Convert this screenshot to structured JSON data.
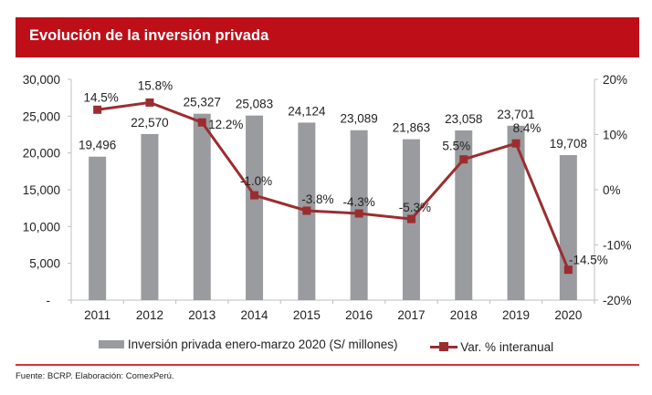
{
  "title": "Evolución de la inversión privada",
  "chart_data": {
    "type": "bar+line",
    "title": "Evolución de la inversión privada",
    "categories": [
      "2011",
      "2012",
      "2013",
      "2014",
      "2015",
      "2016",
      "2017",
      "2018",
      "2019",
      "2020"
    ],
    "series": [
      {
        "name": "Inversión privada enero-marzo 2020 (S/ millones)",
        "type": "bar",
        "axis": "left",
        "values": [
          19496,
          22570,
          25327,
          25083,
          24124,
          23089,
          21863,
          23058,
          23701,
          19708
        ],
        "labels": [
          "19,496",
          "22,570",
          "25,327",
          "25,083",
          "24,124",
          "23,089",
          "21,863",
          "23,058",
          "23,701",
          "19,708"
        ]
      },
      {
        "name": "Var. % interanual",
        "type": "line",
        "axis": "right",
        "values": [
          14.5,
          15.8,
          12.2,
          -1.0,
          -3.8,
          -4.3,
          -5.3,
          5.5,
          8.4,
          -14.5
        ],
        "labels": [
          "14.5%",
          "15.8%",
          "12.2%",
          "-1.0%",
          "-3.8%",
          "-4.3%",
          "-5.3%",
          "5.5%",
          "8.4%",
          "-14.5%"
        ]
      }
    ],
    "y_left": {
      "range": [
        0,
        30000
      ],
      "ticks": [
        "-",
        "5,000",
        "10,000",
        "15,000",
        "20,000",
        "25,000",
        "30,000"
      ]
    },
    "y_right": {
      "range": [
        -20,
        20
      ],
      "ticks": [
        "-20%",
        "-10%",
        "0%",
        "10%",
        "20%"
      ]
    },
    "grid": false,
    "legend": "bottom",
    "colors": {
      "bar": "#999B9E",
      "line": "#9B2D30",
      "header": "#BE0F19"
    }
  },
  "footer": "Fuente: BCRP. Elaboración: ComexPerú."
}
